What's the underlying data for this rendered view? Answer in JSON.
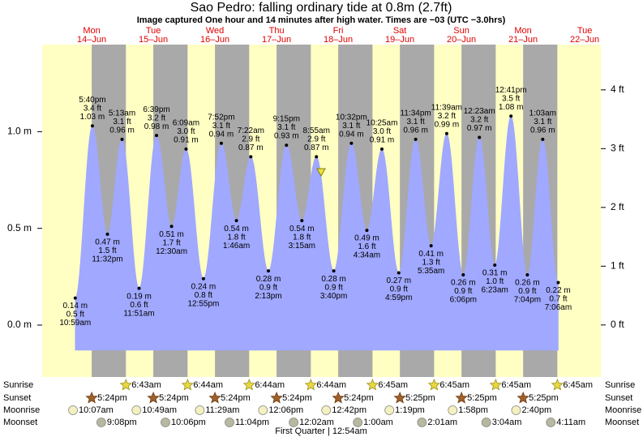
{
  "chart_data": {
    "type": "tide",
    "title": "Sao Pedro: falling  ordinary tide at 0.8m (2.7ft)",
    "subtitle": "Image captured One hour and 14 minutes after high water. Times are −03 (UTC −3.0hrs)",
    "ylim": [
      -0.13,
      1.45
    ],
    "yticks": [
      {
        "value": 0,
        "label": "0.0 m"
      },
      {
        "value": 0.5,
        "label": "0.5 m"
      },
      {
        "value": 1,
        "label": "1.0 m"
      }
    ],
    "y2lim": [
      -0.43,
      4.77
    ],
    "y2ticks": [
      {
        "value": 0,
        "label": "0 ft"
      },
      {
        "value": 1,
        "label": "1 ft"
      },
      {
        "value": 2,
        "label": "2 ft"
      },
      {
        "value": 3,
        "label": "3 ft"
      },
      {
        "value": 4,
        "label": "4 ft"
      }
    ],
    "fill_color": "#a0a8ff",
    "day_color": "#ffffc4",
    "night_color": "#a9a9a9",
    "event_labels": [
      "Sunrise",
      "Sunset",
      "Moonrise",
      "Moonset"
    ],
    "moon_phase": "First Quarter | 12:54am",
    "days": [
      {
        "weekday": "Mon",
        "date": "14–Jun",
        "sunset": "5:24pm",
        "moonrise": "10:07am",
        "moonset": "9:08pm",
        "tides": [
          {
            "time": "10:59am",
            "height": 0.14,
            "height_label": "0.14 m",
            "feet": 0.5,
            "feet_label": "0.5 ft"
          },
          {
            "time": "5:40pm",
            "height": 1.03,
            "height_label": "1.03 m",
            "feet": 3.4,
            "feet_label": "3.4 ft"
          },
          {
            "time": "11:32pm",
            "height": 0.47,
            "height_label": "0.47 m",
            "feet": 1.5,
            "feet_label": "1.5 ft"
          }
        ]
      },
      {
        "weekday": "Tue",
        "date": "15–Jun",
        "sunrise": "6:43am",
        "sunset": "5:24pm",
        "moonrise": "10:49am",
        "moonset": "10:06pm",
        "tides": [
          {
            "time": "5:13am",
            "height": 0.96,
            "height_label": "0.96 m",
            "feet": 3.1,
            "feet_label": "3.1 ft"
          },
          {
            "time": "11:51am",
            "height": 0.19,
            "height_label": "0.19 m",
            "feet": 0.6,
            "feet_label": "0.6 ft"
          },
          {
            "time": "6:39pm",
            "height": 0.98,
            "height_label": "0.98 m",
            "feet": 3.2,
            "feet_label": "3.2 ft"
          }
        ]
      },
      {
        "weekday": "Wed",
        "date": "16–Jun",
        "sunrise": "6:44am",
        "sunset": "5:24pm",
        "moonrise": "11:29am",
        "moonset": "11:04pm",
        "tides": [
          {
            "time": "12:30am",
            "height": 0.51,
            "height_label": "0.51 m",
            "feet": 1.7,
            "feet_label": "1.7 ft"
          },
          {
            "time": "6:09am",
            "height": 0.91,
            "height_label": "0.91 m",
            "feet": 3.0,
            "feet_label": "3.0 ft"
          },
          {
            "time": "12:55pm",
            "height": 0.24,
            "height_label": "0.24 m",
            "feet": 0.8,
            "feet_label": "0.8 ft"
          },
          {
            "time": "7:52pm",
            "height": 0.94,
            "height_label": "0.94 m",
            "feet": 3.1,
            "feet_label": "3.1 ft"
          }
        ]
      },
      {
        "weekday": "Thu",
        "date": "17–Jun",
        "sunrise": "6:44am",
        "sunset": "5:24pm",
        "moonrise": "12:06pm",
        "tides": [
          {
            "time": "1:46am",
            "height": 0.54,
            "height_label": "0.54 m",
            "feet": 1.8,
            "feet_label": "1.8 ft"
          },
          {
            "time": "7:22am",
            "height": 0.87,
            "height_label": "0.87 m",
            "feet": 2.9,
            "feet_label": "2.9 ft"
          },
          {
            "time": "2:13pm",
            "height": 0.28,
            "height_label": "0.28 m",
            "feet": 0.9,
            "feet_label": "0.9 ft"
          },
          {
            "time": "9:15pm",
            "height": 0.93,
            "height_label": "0.93 m",
            "feet": 3.1,
            "feet_label": "3.1 ft"
          }
        ]
      },
      {
        "weekday": "Fri",
        "date": "18–Jun",
        "sunrise": "6:44am",
        "sunset": "5:24pm",
        "moonrise": "12:42pm",
        "moonset": "12:02am",
        "tides": [
          {
            "time": "3:15am",
            "height": 0.54,
            "height_label": "0.54 m",
            "feet": 1.8,
            "feet_label": "1.8 ft"
          },
          {
            "time": "8:55am",
            "height": 0.87,
            "height_label": "0.87 m",
            "feet": 2.9,
            "feet_label": "2.9 ft"
          },
          {
            "time": "3:40pm",
            "height": 0.28,
            "height_label": "0.28 m",
            "feet": 0.9,
            "feet_label": "0.9 ft"
          },
          {
            "time": "10:32pm",
            "height": 0.94,
            "height_label": "0.94 m",
            "feet": 3.1,
            "feet_label": "3.1 ft"
          }
        ]
      },
      {
        "weekday": "Sat",
        "date": "19–Jun",
        "sunrise": "6:45am",
        "sunset": "5:25pm",
        "moonrise": "1:19pm",
        "moonset": "1:00am",
        "tides": [
          {
            "time": "4:34am",
            "height": 0.49,
            "height_label": "0.49 m",
            "feet": 1.6,
            "feet_label": "1.6 ft"
          },
          {
            "time": "10:25am",
            "height": 0.91,
            "height_label": "0.91 m",
            "feet": 3.0,
            "feet_label": "3.0 ft"
          },
          {
            "time": "4:59pm",
            "height": 0.27,
            "height_label": "0.27 m",
            "feet": 0.9,
            "feet_label": "0.9 ft"
          },
          {
            "time": "11:34pm",
            "height": 0.96,
            "height_label": "0.96 m",
            "feet": 3.1,
            "feet_label": "3.1 ft"
          }
        ]
      },
      {
        "weekday": "Sun",
        "date": "20–Jun",
        "sunrise": "6:45am",
        "sunset": "5:25pm",
        "moonrise": "1:58pm",
        "moonset": "2:01am",
        "tides": [
          {
            "time": "5:35am",
            "height": 0.41,
            "height_label": "0.41 m",
            "feet": 1.3,
            "feet_label": "1.3 ft"
          },
          {
            "time": "11:39am",
            "height": 0.99,
            "height_label": "0.99 m",
            "feet": 3.2,
            "feet_label": "3.2 ft"
          },
          {
            "time": "6:06pm",
            "height": 0.26,
            "height_label": "0.26 m",
            "feet": 0.9,
            "feet_label": "0.9 ft"
          }
        ]
      },
      {
        "weekday": "Mon",
        "date": "21–Jun",
        "sunrise": "6:45am",
        "sunset": "5:25pm",
        "moonrise": "2:40pm",
        "moonset": "3:04am",
        "tides": [
          {
            "time": "12:23am",
            "height": 0.97,
            "height_label": "0.97 m",
            "feet": 3.2,
            "feet_label": "3.2 ft"
          },
          {
            "time": "6:23am",
            "height": 0.31,
            "height_label": "0.31 m",
            "feet": 1.0,
            "feet_label": "1.0 ft"
          },
          {
            "time": "12:41pm",
            "height": 1.08,
            "height_label": "1.08 m",
            "feet": 3.5,
            "feet_label": "3.5 ft"
          },
          {
            "time": "7:04pm",
            "height": 0.26,
            "height_label": "0.26 m",
            "feet": 0.9,
            "feet_label": "0.9 ft"
          }
        ]
      },
      {
        "weekday": "Tue",
        "date": "22–Jun",
        "sunrise": "6:45am",
        "moonset": "4:11am",
        "tides": [
          {
            "time": "1:03am",
            "height": 0.96,
            "height_label": "0.96 m",
            "feet": 3.1,
            "feet_label": "3.1 ft"
          },
          {
            "time": "7:06am",
            "height": 0.22,
            "height_label": "0.22 m",
            "feet": 0.7,
            "feet_label": "0.7 ft"
          }
        ]
      }
    ]
  }
}
